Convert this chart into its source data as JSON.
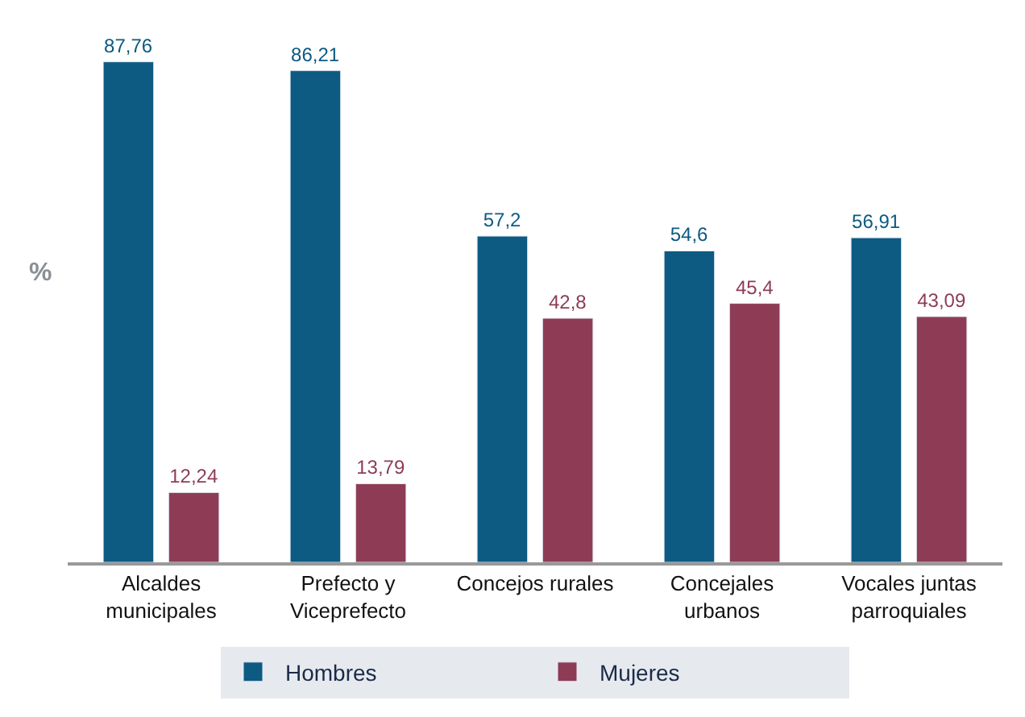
{
  "chart_data": {
    "type": "bar",
    "ylabel": "%",
    "categories": [
      "Alcaldes\nmunicipales",
      "Prefecto y\nViceprefecto",
      "Concejos rurales",
      "Concejales\nurbanos",
      "Vocales juntas\nparroquiales"
    ],
    "series": [
      {
        "name": "Hombres",
        "color": "#0d5a82",
        "values": [
          87.76,
          86.21,
          57.2,
          54.6,
          56.91
        ],
        "value_labels": [
          "87,76",
          "86,21",
          "57,2",
          "54,6",
          "56,91"
        ]
      },
      {
        "name": "Mujeres",
        "color": "#8e3c55",
        "values": [
          12.24,
          13.79,
          42.8,
          45.4,
          43.09
        ],
        "value_labels": [
          "12,24",
          "13,79",
          "42,8",
          "45,4",
          "43,09"
        ]
      }
    ],
    "legend": "bottom"
  }
}
